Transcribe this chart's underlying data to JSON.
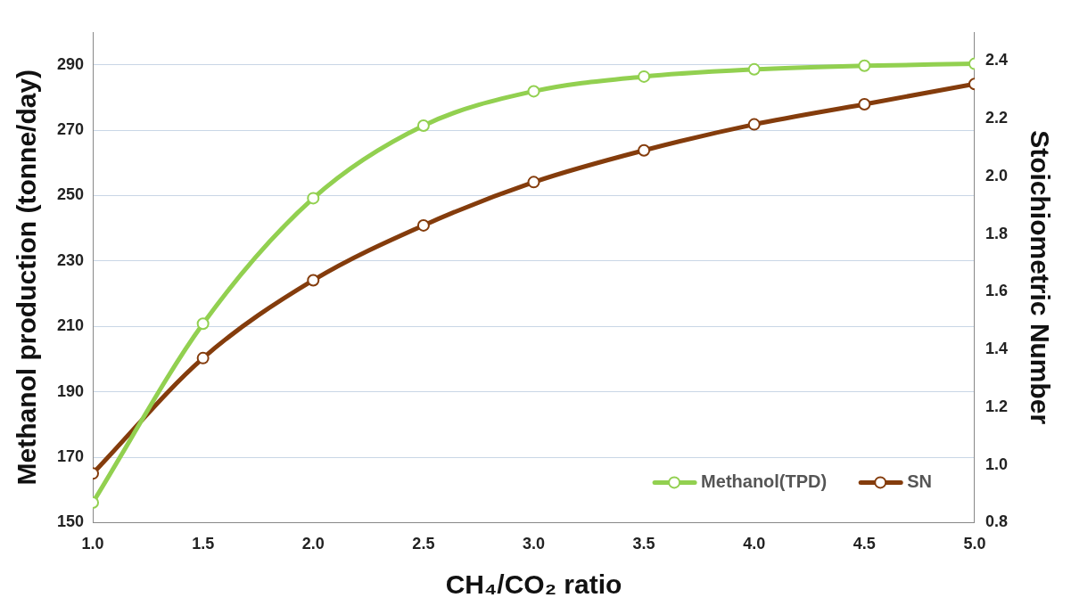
{
  "chart_data": {
    "type": "line",
    "xlabel": "CH₄/CO₂ ratio",
    "ylabel": "Methanol production (tonne/day)",
    "y2label": "Stoichiometric Number",
    "x": [
      1.0,
      1.5,
      2.0,
      2.5,
      3.0,
      3.5,
      4.0,
      4.5,
      5.0
    ],
    "series": [
      {
        "name": "Methanol(TPD)",
        "color": "#92d050",
        "values": [
          156.1,
          210.8,
          249.2,
          271.4,
          281.9,
          286.4,
          288.6,
          289.7,
          290.3
        ]
      },
      {
        "name": "SN",
        "color": "#843c0c",
        "axis": "y2",
        "values": [
          0.97,
          1.37,
          1.64,
          1.83,
          1.98,
          2.09,
          2.18,
          2.25,
          2.32
        ]
      }
    ],
    "xlim": [
      1,
      5
    ],
    "xticks": [
      {
        "value": 1,
        "label": "1.0"
      },
      {
        "value": 1.5,
        "label": "1.5"
      },
      {
        "value": 2,
        "label": "2.0"
      },
      {
        "value": 2.5,
        "label": "2.5"
      },
      {
        "value": 3,
        "label": "3.0"
      },
      {
        "value": 3.5,
        "label": "3.5"
      },
      {
        "value": 4,
        "label": "4.0"
      },
      {
        "value": 4.5,
        "label": "4.5"
      },
      {
        "value": 5,
        "label": "5.0"
      }
    ],
    "ylim": [
      150,
      300
    ],
    "yticks": [
      150,
      170,
      190,
      210,
      230,
      250,
      270,
      290
    ],
    "y2lim": [
      0.8,
      2.5
    ],
    "y2ticks": [
      0.8,
      {
        "value": 1,
        "label": "1.0"
      },
      1.2,
      1.4,
      1.6,
      1.8,
      {
        "value": 2,
        "label": "2.0"
      },
      2.2,
      2.4
    ],
    "grid": "y",
    "legend": "bottom right",
    "marker": "circle",
    "line_style": "solid"
  }
}
